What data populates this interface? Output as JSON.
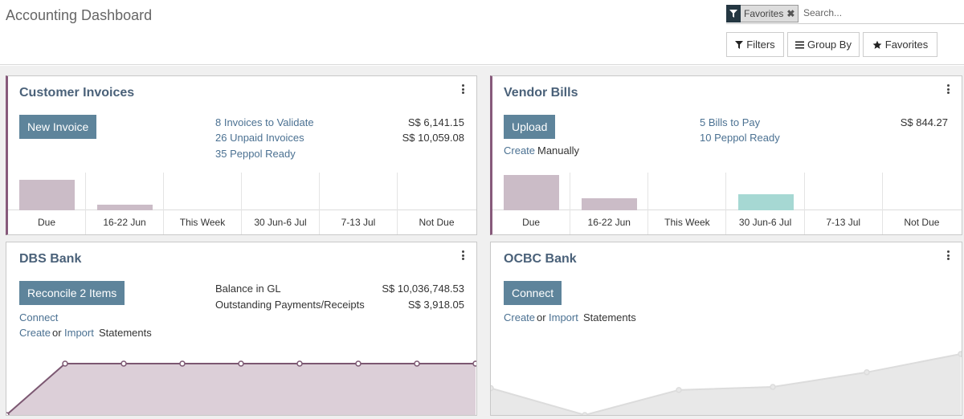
{
  "header": {
    "title": "Accounting Dashboard",
    "facet_label": "Favorites",
    "search_placeholder": "Search...",
    "filters_label": "Filters",
    "groupby_label": "Group By",
    "favorites_label": "Favorites"
  },
  "colors": {
    "accent": "#875a7b",
    "primary_button": "#5e849b",
    "link": "#4b7192",
    "bar_past": "#cbbcc7",
    "bar_future": "#a6d8d3"
  },
  "customer_invoices": {
    "title": "Customer Invoices",
    "button": "New Invoice",
    "links": [
      {
        "label": "8 Invoices to Validate",
        "amount": "S$ 6,141.15"
      },
      {
        "label": "26 Unpaid Invoices",
        "amount": "S$ 10,059.08"
      },
      {
        "label": "35 Peppol Ready",
        "amount": ""
      }
    ],
    "chart": [
      {
        "label": "Due",
        "value": 36,
        "kind": "past"
      },
      {
        "label": "16-22 Jun",
        "value": 7,
        "kind": "past"
      },
      {
        "label": "This Week",
        "value": 0,
        "kind": "past"
      },
      {
        "label": "30 Jun-6 Jul",
        "value": 0,
        "kind": "future"
      },
      {
        "label": "7-13 Jul",
        "value": 0,
        "kind": "future"
      },
      {
        "label": "Not Due",
        "value": 0,
        "kind": "future"
      }
    ]
  },
  "vendor_bills": {
    "title": "Vendor Bills",
    "button": "Upload",
    "create_link": "Create",
    "create_text": "Manually",
    "links": [
      {
        "label": "5 Bills to Pay",
        "amount": "S$ 844.27"
      },
      {
        "label": "10 Peppol Ready",
        "amount": ""
      }
    ],
    "chart": [
      {
        "label": "Due",
        "value": 42,
        "kind": "past"
      },
      {
        "label": "16-22 Jun",
        "value": 14,
        "kind": "past"
      },
      {
        "label": "This Week",
        "value": 0,
        "kind": "past"
      },
      {
        "label": "30 Jun-6 Jul",
        "value": 19,
        "kind": "future"
      },
      {
        "label": "7-13 Jul",
        "value": 0,
        "kind": "future"
      },
      {
        "label": "Not Due",
        "value": 0,
        "kind": "future"
      }
    ]
  },
  "dbs_bank": {
    "title": "DBS Bank",
    "button": "Reconcile 2 Items",
    "connect_link": "Connect",
    "create_link": "Create",
    "or_text": "or",
    "import_link": "Import",
    "statements_text": "Statements",
    "balances": [
      {
        "label": "Balance in GL",
        "amount": "S$ 10,036,748.53"
      },
      {
        "label": "Outstanding Payments/Receipts",
        "amount": "S$ 3,918.05"
      }
    ],
    "line_values": [
      0,
      1,
      1,
      1,
      1,
      1,
      1,
      1,
      1
    ]
  },
  "ocbc_bank": {
    "title": "OCBC Bank",
    "button": "Connect",
    "create_link": "Create",
    "or_text": "or",
    "import_link": "Import",
    "statements_text": "Statements",
    "line_values": [
      0.44,
      0,
      0.41,
      0.46,
      0.7,
      1
    ]
  }
}
